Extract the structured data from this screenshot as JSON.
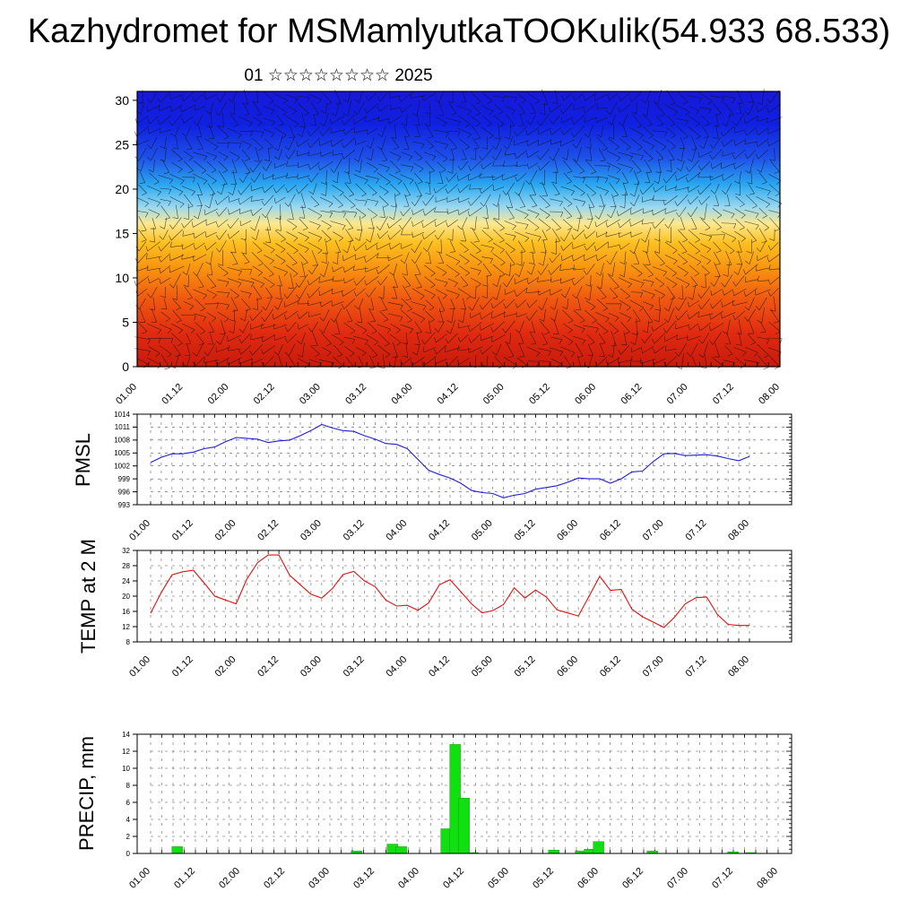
{
  "header": {
    "title": "Kazhydromet for MSMamlyutkaTOOKulik(54.933 68.533)",
    "subtitle": "01 ☆☆☆☆☆☆☆☆ 2025"
  },
  "colors": {
    "pmsl_line": "#1f1fd6",
    "temp_line": "#e01010",
    "precip_bar": "#10e010",
    "frame": "#000000"
  },
  "chart_data": [
    {
      "type": "heatmap",
      "name": "vertical-profile",
      "x_ticks": [
        "01.00",
        "01.12",
        "02.00",
        "02.12",
        "03.00",
        "03.12",
        "04.00",
        "04.12",
        "05.00",
        "05.12",
        "06.00",
        "06.12",
        "07.00",
        "07.12",
        "08.00"
      ],
      "y_ticks": [
        0,
        5,
        10,
        15,
        20,
        25,
        30
      ],
      "ylim": [
        0,
        31
      ],
      "color_scale": "red-low to blue-high",
      "wind_barbs": true
    },
    {
      "type": "line",
      "ylabel": "PMSL",
      "x_ticks": [
        "01.00",
        "01.12",
        "02.00",
        "02.12",
        "03.00",
        "03.12",
        "04.00",
        "04.12",
        "05.00",
        "05.12",
        "06.00",
        "06.12",
        "07.00",
        "07.12",
        "08.00"
      ],
      "y_ticks": [
        993,
        996,
        999,
        1002,
        1005,
        1008,
        1011,
        1014
      ],
      "ylim": [
        993,
        1014
      ],
      "x": [
        0,
        3,
        6,
        9,
        12,
        15,
        18,
        21,
        24,
        27,
        30,
        33,
        36,
        39,
        42,
        45,
        48,
        51,
        54,
        57,
        60,
        63,
        66,
        69,
        72,
        75,
        78,
        81,
        84,
        87,
        90,
        93,
        96,
        99,
        102,
        105,
        108,
        111,
        114,
        117,
        120,
        123,
        126,
        129,
        132,
        135,
        138,
        141,
        144,
        147,
        150,
        153,
        156,
        159,
        162,
        165,
        168
      ],
      "values": [
        1002.8,
        1004.0,
        1004.8,
        1004.8,
        1005.2,
        1006.0,
        1006.4,
        1007.6,
        1008.6,
        1008.4,
        1008.2,
        1007.4,
        1007.8,
        1008.0,
        1009.0,
        1010.2,
        1011.6,
        1010.8,
        1010.2,
        1010.0,
        1009.0,
        1008.2,
        1007.2,
        1007.0,
        1006.0,
        1003.5,
        1001.0,
        1000.0,
        999.2,
        998.0,
        996.3,
        995.8,
        995.6,
        994.6,
        995.2,
        995.6,
        996.6,
        997.0,
        997.4,
        998.2,
        999.2,
        999.0,
        999.0,
        998.0,
        999.0,
        1000.6,
        1000.8,
        1003.0,
        1004.8,
        1004.9,
        1004.4,
        1004.5,
        1004.6,
        1004.3,
        1003.7,
        1003.2,
        1004.2
      ],
      "grid": true
    },
    {
      "type": "line",
      "ylabel": "TEMP at 2 M",
      "x_ticks": [
        "01.00",
        "01.12",
        "02.00",
        "02.12",
        "03.00",
        "03.12",
        "04.00",
        "04.12",
        "05.00",
        "05.12",
        "06.00",
        "06.12",
        "07.00",
        "07.12",
        "08.00"
      ],
      "y_ticks": [
        8,
        12,
        16,
        20,
        24,
        28,
        32
      ],
      "ylim": [
        8,
        32
      ],
      "x": [
        0,
        3,
        6,
        9,
        12,
        15,
        18,
        21,
        24,
        27,
        30,
        33,
        36,
        39,
        42,
        45,
        48,
        51,
        54,
        57,
        60,
        63,
        66,
        69,
        72,
        75,
        78,
        81,
        84,
        87,
        90,
        93,
        96,
        99,
        102,
        105,
        108,
        111,
        114,
        117,
        120,
        123,
        126,
        129,
        132,
        135,
        138,
        141,
        144,
        147,
        150,
        153,
        156,
        159,
        162,
        165,
        168
      ],
      "values": [
        15.5,
        21.0,
        25.6,
        26.4,
        26.8,
        23.5,
        20.0,
        19.0,
        18.0,
        24.5,
        28.8,
        30.8,
        30.8,
        25.5,
        23.0,
        20.5,
        19.5,
        22.0,
        25.7,
        26.5,
        24.0,
        22.5,
        19.0,
        17.4,
        17.6,
        16.3,
        18.2,
        23.0,
        24.3,
        21.2,
        18.0,
        15.6,
        16.2,
        17.8,
        22.2,
        19.5,
        21.6,
        19.8,
        16.4,
        15.6,
        14.8,
        20.0,
        25.2,
        21.5,
        21.8,
        16.6,
        14.6,
        13.2,
        11.8,
        14.5,
        18.0,
        19.6,
        19.8,
        15.2,
        12.6,
        12.3,
        12.3
      ],
      "grid": true
    },
    {
      "type": "bar",
      "ylabel": "PRECIP, mm",
      "x_ticks": [
        "01.00",
        "01.12",
        "02.00",
        "02.12",
        "03.00",
        "03.12",
        "04.00",
        "04.12",
        "05.00",
        "05.12",
        "06.00",
        "06.12",
        "07.00",
        "07.12",
        "08.00"
      ],
      "y_ticks": [
        0,
        2,
        4,
        6,
        8,
        10,
        12,
        14
      ],
      "ylim": [
        0,
        14
      ],
      "x": [
        9,
        69,
        81,
        84,
        99,
        102,
        105,
        108,
        135,
        144,
        147,
        150,
        168,
        195,
        201
      ],
      "values": [
        0.8,
        0.3,
        1.1,
        0.8,
        2.9,
        12.8,
        6.5,
        0.1,
        0.4,
        0.3,
        0.5,
        1.4,
        0.3,
        0.2,
        0.1
      ],
      "grid": true
    }
  ]
}
